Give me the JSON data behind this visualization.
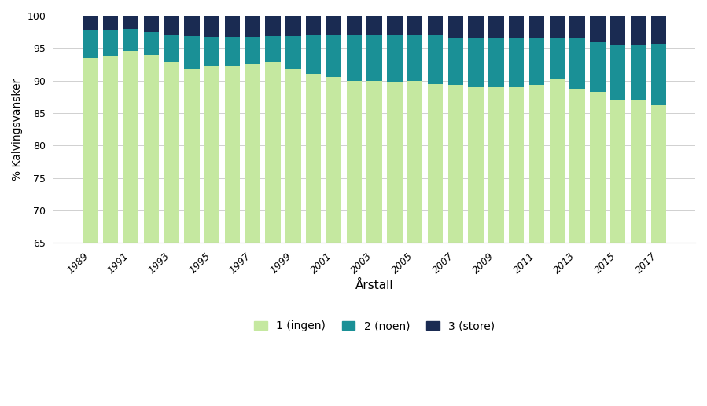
{
  "years": [
    1989,
    1990,
    1991,
    1992,
    1993,
    1994,
    1995,
    1996,
    1997,
    1998,
    1999,
    2000,
    2001,
    2002,
    2003,
    2004,
    2005,
    2006,
    2007,
    2008,
    2009,
    2010,
    2011,
    2012,
    2013,
    2014,
    2015,
    2016,
    2017
  ],
  "cat1": [
    93.5,
    93.8,
    94.5,
    94.0,
    92.8,
    91.8,
    92.2,
    92.2,
    92.5,
    92.8,
    91.8,
    91.0,
    90.5,
    90.0,
    90.0,
    89.8,
    90.0,
    89.5,
    89.3,
    89.0,
    89.0,
    89.0,
    89.3,
    90.2,
    88.8,
    88.2,
    87.0,
    87.0,
    86.2
  ],
  "cat2": [
    4.3,
    4.0,
    3.5,
    3.5,
    4.2,
    5.0,
    4.5,
    4.5,
    4.2,
    4.0,
    5.0,
    6.0,
    6.5,
    7.0,
    7.0,
    7.2,
    7.0,
    7.5,
    7.2,
    7.5,
    7.5,
    7.5,
    7.2,
    6.3,
    7.7,
    7.8,
    8.5,
    8.5,
    9.5
  ],
  "cat3": [
    2.2,
    2.2,
    2.0,
    2.5,
    3.0,
    3.2,
    3.3,
    3.3,
    3.3,
    3.2,
    3.2,
    3.0,
    3.0,
    3.0,
    3.0,
    3.0,
    3.0,
    3.0,
    3.5,
    3.5,
    3.5,
    3.5,
    3.5,
    3.5,
    3.5,
    4.0,
    4.5,
    4.5,
    4.3
  ],
  "color1": "#c5e8a0",
  "color2": "#1a9096",
  "color3": "#1a2b52",
  "xlabel": "Årstall",
  "ylabel": "% Kalvingsvansker",
  "ylim_min": 65,
  "ylim_max": 100,
  "yticks": [
    65,
    70,
    75,
    80,
    85,
    90,
    95,
    100
  ],
  "legend_labels": [
    "1 (ingen)",
    "2 (noen)",
    "3 (store)"
  ],
  "bar_width": 0.75,
  "bg_color": "#ffffff",
  "grid_color": "#d0d0d0"
}
